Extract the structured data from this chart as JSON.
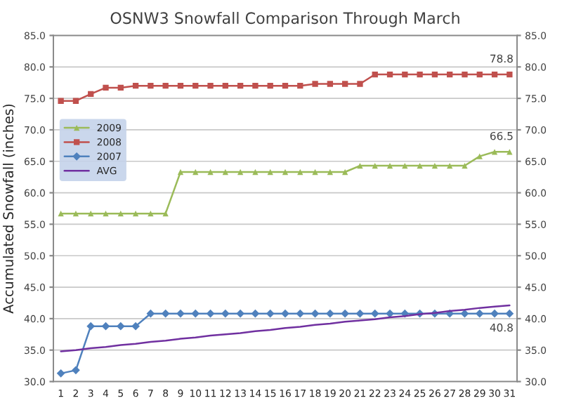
{
  "chart_data": {
    "type": "line",
    "title": "OSNW3 Snowfall Comparison Through March",
    "ylabel": "Accumulated Snowfall (inches)",
    "categories": [
      "1",
      "2",
      "3",
      "4",
      "5",
      "6",
      "7",
      "8",
      "9",
      "10",
      "11",
      "12",
      "13",
      "14",
      "15",
      "16",
      "17",
      "18",
      "19",
      "20",
      "21",
      "22",
      "23",
      "24",
      "25",
      "26",
      "27",
      "28",
      "29",
      "30",
      "31"
    ],
    "series": [
      {
        "name": "2009",
        "color": "#9bbb59",
        "marker": "triangle",
        "values": [
          56.7,
          56.7,
          56.7,
          56.7,
          56.7,
          56.7,
          56.7,
          56.7,
          63.3,
          63.3,
          63.3,
          63.3,
          63.3,
          63.3,
          63.3,
          63.3,
          63.3,
          63.3,
          63.3,
          63.3,
          64.3,
          64.3,
          64.3,
          64.3,
          64.3,
          64.3,
          64.3,
          64.3,
          65.8,
          66.5,
          66.5
        ],
        "value_labels": [
          null,
          null,
          null,
          null,
          null,
          null,
          null,
          null,
          null,
          null,
          null,
          null,
          null,
          null,
          null,
          null,
          null,
          null,
          null,
          null,
          null,
          null,
          null,
          null,
          null,
          null,
          null,
          null,
          null,
          null,
          "66.5"
        ]
      },
      {
        "name": "2008",
        "color": "#c0504d",
        "marker": "square",
        "values": [
          74.6,
          74.6,
          75.7,
          76.7,
          76.7,
          77.0,
          77.0,
          77.0,
          77.0,
          77.0,
          77.0,
          77.0,
          77.0,
          77.0,
          77.0,
          77.0,
          77.0,
          77.3,
          77.3,
          77.3,
          77.3,
          78.8,
          78.8,
          78.8,
          78.8,
          78.8,
          78.8,
          78.8,
          78.8,
          78.8,
          78.8
        ],
        "value_labels": [
          null,
          null,
          null,
          null,
          null,
          null,
          null,
          null,
          null,
          null,
          null,
          null,
          null,
          null,
          null,
          null,
          null,
          null,
          null,
          null,
          null,
          null,
          null,
          null,
          null,
          null,
          null,
          null,
          null,
          null,
          "78.8"
        ]
      },
      {
        "name": "2007",
        "color": "#4f81bd",
        "marker": "diamond",
        "values": [
          31.3,
          31.8,
          38.8,
          38.8,
          38.8,
          38.8,
          40.8,
          40.8,
          40.8,
          40.8,
          40.8,
          40.8,
          40.8,
          40.8,
          40.8,
          40.8,
          40.8,
          40.8,
          40.8,
          40.8,
          40.8,
          40.8,
          40.8,
          40.8,
          40.8,
          40.8,
          40.8,
          40.8,
          40.8,
          40.8,
          40.8
        ],
        "value_labels": [
          null,
          null,
          null,
          null,
          null,
          null,
          null,
          null,
          null,
          null,
          null,
          null,
          null,
          null,
          null,
          null,
          null,
          null,
          null,
          null,
          null,
          null,
          null,
          null,
          null,
          null,
          null,
          null,
          null,
          null,
          "40.8"
        ]
      },
      {
        "name": "AVG",
        "color": "#7030a0",
        "marker": "none",
        "values": [
          34.8,
          35.0,
          35.3,
          35.5,
          35.8,
          36.0,
          36.3,
          36.5,
          36.8,
          37.0,
          37.3,
          37.5,
          37.7,
          38.0,
          38.2,
          38.5,
          38.7,
          39.0,
          39.2,
          39.5,
          39.7,
          39.9,
          40.2,
          40.4,
          40.7,
          40.9,
          41.2,
          41.4,
          41.7,
          41.9,
          42.1
        ]
      }
    ],
    "ylim": [
      30,
      85
    ],
    "yticks": [
      {
        "value": 30,
        "label": "30.0"
      },
      {
        "value": 35,
        "label": "35.0"
      },
      {
        "value": 40,
        "label": "40.0"
      },
      {
        "value": 45,
        "label": "45.0"
      },
      {
        "value": 50,
        "label": "50.0"
      },
      {
        "value": 55,
        "label": "55.0"
      },
      {
        "value": 60,
        "label": "60.0"
      },
      {
        "value": 65,
        "label": "65.0"
      },
      {
        "value": 70,
        "label": "70.0"
      },
      {
        "value": 75,
        "label": "75.0"
      },
      {
        "value": 80,
        "label": "80.0"
      },
      {
        "value": 85,
        "label": "85.0"
      }
    ],
    "y2lim": [
      30,
      85
    ],
    "y2ticks": [
      {
        "value": 30,
        "label": "30.0"
      },
      {
        "value": 35,
        "label": "35.0"
      },
      {
        "value": 40,
        "label": "40.0"
      },
      {
        "value": 45,
        "label": "45.0"
      },
      {
        "value": 50,
        "label": "50.0"
      },
      {
        "value": 55,
        "label": "55.0"
      },
      {
        "value": 60,
        "label": "60.0"
      },
      {
        "value": 65,
        "label": "65.0"
      },
      {
        "value": 70,
        "label": "70.0"
      },
      {
        "value": 75,
        "label": "75.0"
      },
      {
        "value": 80,
        "label": "80.0"
      },
      {
        "value": 85,
        "label": "85.0"
      }
    ],
    "grid": "y",
    "legend": "left",
    "line_style": "solid"
  }
}
